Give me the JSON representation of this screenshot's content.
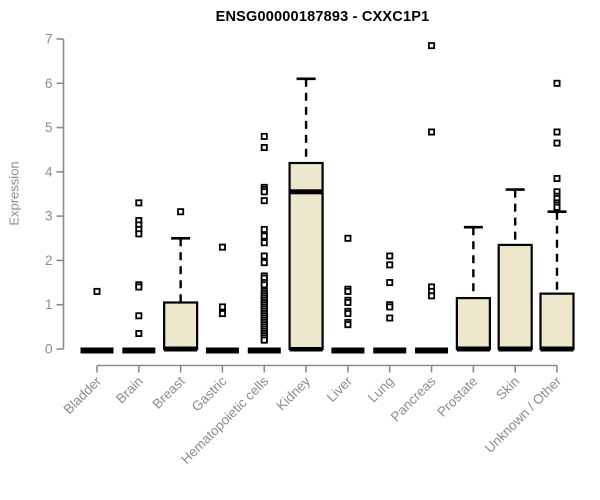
{
  "chart_data": {
    "type": "boxplot",
    "title": "ENSG00000187893 - CXXC1P1",
    "ylabel": "Expression",
    "xlabel": "",
    "ylim": [
      0,
      7
    ],
    "yticks": [
      0,
      1,
      2,
      3,
      4,
      5,
      6,
      7
    ],
    "grid": "off",
    "legend": "none",
    "categories": [
      "Bladder",
      "Brain",
      "Breast",
      "Gastric",
      "Hematopoietic cells",
      "Kidney",
      "Liver",
      "Lung",
      "Pancreas",
      "Prostate",
      "Skin",
      "Unknown / Other"
    ],
    "series": [
      {
        "name": "Bladder",
        "min": 0,
        "q1": 0,
        "median": 0,
        "q3": 0,
        "whisker_high": 0,
        "outliers": [
          1.3
        ]
      },
      {
        "name": "Brain",
        "min": 0,
        "q1": 0,
        "median": 0,
        "q3": 0,
        "whisker_high": 0,
        "outliers": [
          3.3,
          2.9,
          2.8,
          2.7,
          2.6,
          1.45,
          1.4,
          0.75,
          0.35
        ]
      },
      {
        "name": "Breast",
        "min": 0,
        "q1": 0,
        "median": 0,
        "q3": 1.05,
        "whisker_high": 2.5,
        "outliers": [
          3.1
        ]
      },
      {
        "name": "Gastric",
        "min": 0,
        "q1": 0,
        "median": 0,
        "q3": 0,
        "whisker_high": 0,
        "outliers": [
          2.3,
          0.95,
          0.8
        ]
      },
      {
        "name": "Hematopoietic cells",
        "min": 0,
        "q1": 0,
        "median": 0,
        "q3": 0,
        "whisker_high": 0,
        "outliers": [
          4.8,
          4.55,
          3.65,
          3.6,
          3.55,
          3.35,
          2.7,
          2.55,
          2.4,
          2.1,
          1.95,
          1.65,
          1.6,
          1.5,
          1.45,
          1.3,
          1.25,
          1.2,
          1.15,
          1.1,
          1.05,
          1.0,
          0.95,
          0.9,
          0.85,
          0.8,
          0.75,
          0.7,
          0.65,
          0.6,
          0.55,
          0.5,
          0.45,
          0.4,
          0.35,
          0.3,
          0.25,
          0.2
        ]
      },
      {
        "name": "Kidney",
        "min": 0,
        "q1": 0,
        "median": 3.55,
        "q3": 4.2,
        "whisker_high": 6.1,
        "outliers": []
      },
      {
        "name": "Liver",
        "min": 0,
        "q1": 0,
        "median": 0,
        "q3": 0,
        "whisker_high": 0,
        "outliers": [
          2.5,
          1.35,
          1.3,
          1.1,
          1.05,
          0.85,
          0.8,
          0.6,
          0.55
        ]
      },
      {
        "name": "Lung",
        "min": 0,
        "q1": 0,
        "median": 0,
        "q3": 0,
        "whisker_high": 0,
        "outliers": [
          2.1,
          1.9,
          1.5,
          1.0,
          0.95,
          0.7
        ]
      },
      {
        "name": "Pancreas",
        "min": 0,
        "q1": 0,
        "median": 0,
        "q3": 0,
        "whisker_high": 0,
        "outliers": [
          6.85,
          4.9,
          1.4,
          1.3,
          1.2
        ]
      },
      {
        "name": "Prostate",
        "min": 0,
        "q1": 0,
        "median": 0,
        "q3": 1.15,
        "whisker_high": 2.75,
        "outliers": []
      },
      {
        "name": "Skin",
        "min": 0,
        "q1": 0,
        "median": 0,
        "q3": 2.35,
        "whisker_high": 3.6,
        "outliers": []
      },
      {
        "name": "Unknown / Other",
        "min": 0,
        "q1": 0,
        "median": 0,
        "q3": 1.25,
        "whisker_high": 3.1,
        "outliers": [
          6.0,
          4.9,
          4.65,
          3.85,
          3.55,
          3.45,
          3.4,
          3.3,
          3.25,
          3.2
        ]
      }
    ],
    "colors": {
      "box_fill": "#EDE8CD",
      "box_stroke": "#000000",
      "axis_color": "#8C8C8C",
      "tick_label_color": "#8C8C8C",
      "title_color": "#000000",
      "background": "#FFFFFF"
    }
  }
}
